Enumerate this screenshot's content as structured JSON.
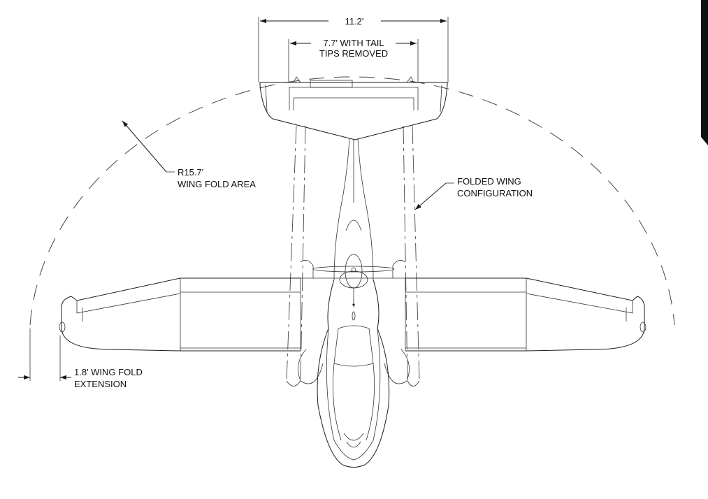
{
  "labels": {
    "overall_width": "11.2'",
    "tail_width_line1": "7.7' WITH TAIL",
    "tail_width_line2": "TIPS REMOVED",
    "fold_radius_line1": "R15.7'",
    "fold_radius_line2": "WING FOLD AREA",
    "folded_line1": "FOLDED WING",
    "folded_line2": "CONFIGURATION",
    "extension_line1": "1.8' WING FOLD",
    "extension_line2": "EXTENSION"
  },
  "colors": {
    "ink": "#1a1a1a",
    "background": "#ffffff",
    "edge_tab": "#111111"
  }
}
